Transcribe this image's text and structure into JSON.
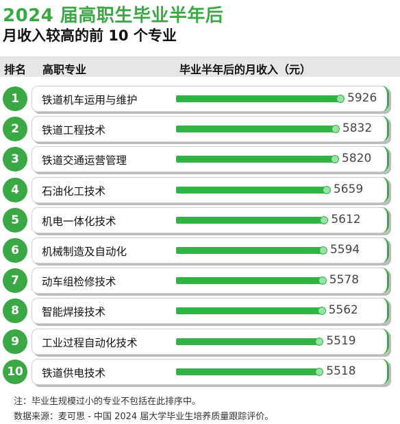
{
  "title": "2024 届高职生毕业半年后",
  "subtitle": "月收入较高的前 10 个专业",
  "headers": {
    "rank": "排名",
    "major": "高职专业",
    "income": "毕业半年后的月收入（元）"
  },
  "chart_data": {
    "type": "bar",
    "orientation": "horizontal",
    "title": "2024 届高职生毕业半年后 月收入较高的前 10 个专业",
    "ylabel": "毕业半年后的月收入（元）",
    "ranks": [
      "1",
      "2",
      "3",
      "4",
      "5",
      "6",
      "7",
      "8",
      "9",
      "10"
    ],
    "categories": [
      "铁道机车运用与维护",
      "铁道工程技术",
      "铁道交通运营管理",
      "石油化工技术",
      "机电一体化技术",
      "机械制造及自动化",
      "动车组检修技术",
      "智能焊接技术",
      "工业过程自动化技术",
      "铁道供电技术"
    ],
    "values": [
      5926,
      5832,
      5820,
      5659,
      5612,
      5594,
      5578,
      5562,
      5519,
      5518
    ],
    "colors": {
      "accent": "#3aa845",
      "bar": "#2fb342",
      "bar_end": "#9be0a4"
    }
  },
  "notes": {
    "note1": "注：毕业生规模过小的专业不包括在此排序中。",
    "source": "数据来源：麦可思 - 中国 2024 届大学毕业生培养质量跟踪评价。"
  }
}
